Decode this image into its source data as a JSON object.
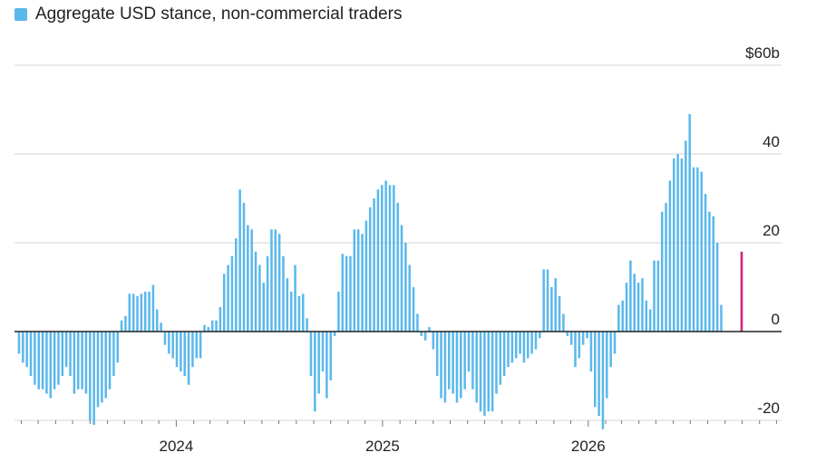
{
  "chart_data": {
    "type": "bar",
    "legend": [
      {
        "label": "Aggregate USD stance, non-commercial traders",
        "color": "#5bb8ec"
      }
    ],
    "y_ticks": [
      {
        "value": 60,
        "label": "$60b"
      },
      {
        "value": 40,
        "label": "40"
      },
      {
        "value": 20,
        "label": "20"
      },
      {
        "value": 0,
        "label": "0"
      },
      {
        "value": -20,
        "label": "-20"
      }
    ],
    "ylim": [
      -20,
      60
    ],
    "x_ticks": [
      {
        "label": "2024",
        "date": "2024-01-01"
      },
      {
        "label": "2025",
        "date": "2025-01-01"
      },
      {
        "label": "2026",
        "date": "2026-01-01"
      }
    ],
    "xlim": [
      "2023-03-20",
      "2026-12-10"
    ],
    "colors": {
      "bar": "#5bb8ec",
      "highlight": "#d6267f",
      "grid": "#d6d6d6",
      "zero": "#222222"
    },
    "series": [
      {
        "name": "Aggregate USD stance, non-commercial traders",
        "start_date": "2023-03-28",
        "interval_days": 7,
        "values": [
          -5,
          -7,
          -8,
          -10,
          -12,
          -13,
          -13,
          -14,
          -15,
          -13,
          -12,
          -10,
          -8,
          -10,
          -14,
          -13,
          -13,
          -14,
          -20,
          -21,
          -17,
          -16,
          -15,
          -13,
          -10,
          -7,
          2.5,
          3.5,
          8.5,
          8.5,
          8,
          8.5,
          9,
          9,
          10.5,
          5,
          2,
          -3,
          -5,
          -6,
          -8,
          -9,
          -10,
          -12,
          -8,
          -6,
          -6,
          1.5,
          1,
          2.5,
          2.5,
          5.5,
          13,
          15,
          17,
          21,
          32,
          29,
          24,
          23,
          18,
          15,
          11,
          17,
          23,
          23,
          22,
          17,
          12,
          9,
          15,
          8,
          8.5,
          3,
          -10,
          -18,
          -14,
          -9,
          -15,
          -11,
          -1,
          9,
          17.5,
          17,
          17,
          23,
          23,
          22,
          25,
          28,
          30,
          32,
          33,
          34,
          33,
          33,
          29,
          24,
          20,
          15,
          10,
          4,
          -1,
          -2,
          1,
          -4,
          -10,
          -15,
          -16,
          -13,
          -14,
          -16,
          -15,
          -13,
          -9,
          -13,
          -16,
          -18,
          -19,
          -18,
          -18,
          -14,
          -12,
          -10,
          -8,
          -7,
          -6,
          -5,
          -7,
          -6,
          -5,
          -4,
          -1.5,
          14,
          14,
          10,
          12,
          8,
          4,
          -1,
          -3,
          -8,
          -6,
          -3,
          -1.5,
          -9,
          -17,
          -19,
          -22,
          -15,
          -8,
          -5,
          6,
          7,
          11,
          16,
          13,
          11,
          12,
          7,
          5,
          16,
          16,
          27,
          29,
          34,
          39,
          40,
          39,
          43,
          49,
          37,
          37,
          36,
          31,
          27,
          26,
          20,
          6
        ],
        "highlight": {
          "date": "2026-09-30",
          "value": 18
        }
      }
    ]
  }
}
